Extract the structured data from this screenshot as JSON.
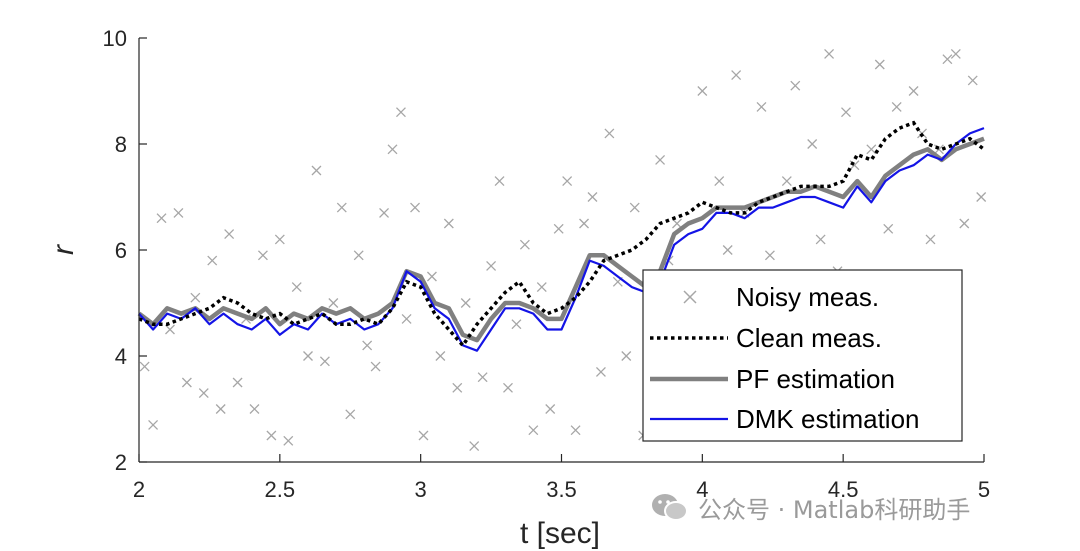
{
  "chart_data": {
    "type": "line",
    "xlabel": "t [sec]",
    "ylabel": "r",
    "xlim": [
      2,
      5
    ],
    "ylim": [
      2,
      10
    ],
    "xticks": [
      "2",
      "2.5",
      "3",
      "3.5",
      "4",
      "4.5",
      "5"
    ],
    "yticks": [
      "2",
      "4",
      "6",
      "8",
      "10"
    ],
    "legend_position": "bottom-right",
    "colors": {
      "noisy": "#a6a6a6",
      "clean": "#000000",
      "pf": "#808080",
      "dmk": "#1414e6"
    },
    "series": [
      {
        "name": "Noisy meas.",
        "style": "markers-x",
        "x": [
          2.02,
          2.05,
          2.08,
          2.11,
          2.14,
          2.17,
          2.2,
          2.23,
          2.26,
          2.29,
          2.32,
          2.35,
          2.38,
          2.41,
          2.44,
          2.47,
          2.5,
          2.53,
          2.56,
          2.6,
          2.63,
          2.66,
          2.69,
          2.72,
          2.75,
          2.78,
          2.81,
          2.84,
          2.87,
          2.9,
          2.93,
          2.95,
          2.98,
          3.01,
          3.04,
          3.07,
          3.1,
          3.13,
          3.16,
          3.19,
          3.22,
          3.25,
          3.28,
          3.31,
          3.34,
          3.37,
          3.4,
          3.43,
          3.46,
          3.49,
          3.52,
          3.55,
          3.58,
          3.61,
          3.64,
          3.67,
          3.7,
          3.73,
          3.76,
          3.79,
          3.82,
          3.85,
          3.88,
          3.91,
          3.94,
          3.97,
          4.0,
          4.03,
          4.06,
          4.09,
          4.12,
          4.15,
          4.18,
          4.21,
          4.24,
          4.27,
          4.3,
          4.33,
          4.36,
          4.39,
          4.42,
          4.45,
          4.48,
          4.51,
          4.54,
          4.57,
          4.6,
          4.63,
          4.66,
          4.69,
          4.72,
          4.75,
          4.78,
          4.81,
          4.84,
          4.87,
          4.9,
          4.93,
          4.96,
          4.99
        ],
        "y": [
          3.8,
          2.7,
          6.6,
          4.5,
          6.7,
          3.5,
          5.1,
          3.3,
          5.8,
          3.0,
          6.3,
          3.5,
          4.7,
          3.0,
          5.9,
          2.5,
          6.2,
          2.4,
          5.3,
          4.0,
          7.5,
          3.9,
          5.0,
          6.8,
          2.9,
          5.9,
          4.2,
          3.8,
          6.7,
          7.9,
          8.6,
          4.7,
          6.8,
          2.5,
          5.5,
          4.0,
          6.5,
          3.4,
          5.0,
          2.3,
          3.6,
          5.7,
          7.3,
          3.4,
          4.6,
          6.1,
          2.6,
          5.3,
          3.0,
          6.4,
          7.3,
          2.6,
          6.5,
          7.0,
          3.7,
          8.2,
          5.4,
          4.0,
          6.8,
          2.5,
          4.3,
          7.7,
          5.8,
          6.5,
          4.9,
          4.2,
          9.0,
          5.5,
          7.3,
          6.0,
          9.3,
          6.7,
          4.4,
          8.7,
          5.9,
          4.0,
          7.3,
          9.1,
          4.9,
          8.0,
          6.2,
          9.7,
          5.6,
          8.6,
          7.6,
          4.4,
          7.9,
          9.5,
          6.4,
          8.7,
          5.2,
          9.0,
          8.2,
          6.2,
          7.9,
          9.6,
          9.7,
          6.5,
          9.2,
          7.0
        ]
      },
      {
        "name": "Clean meas.",
        "style": "dotted",
        "x": [
          2.0,
          2.05,
          2.1,
          2.15,
          2.2,
          2.25,
          2.3,
          2.35,
          2.4,
          2.45,
          2.5,
          2.55,
          2.6,
          2.65,
          2.7,
          2.75,
          2.8,
          2.85,
          2.9,
          2.95,
          3.0,
          3.05,
          3.1,
          3.15,
          3.2,
          3.25,
          3.3,
          3.35,
          3.4,
          3.45,
          3.5,
          3.55,
          3.6,
          3.65,
          3.7,
          3.75,
          3.8,
          3.85,
          3.9,
          3.95,
          4.0,
          4.05,
          4.1,
          4.15,
          4.2,
          4.25,
          4.3,
          4.35,
          4.4,
          4.45,
          4.5,
          4.55,
          4.6,
          4.65,
          4.7,
          4.75,
          4.8,
          4.85,
          4.9,
          4.95,
          5.0
        ],
        "y": [
          4.7,
          4.6,
          4.6,
          4.7,
          4.8,
          4.9,
          5.1,
          5.0,
          4.8,
          4.7,
          4.8,
          4.6,
          4.7,
          4.8,
          4.6,
          4.6,
          4.7,
          4.6,
          4.9,
          5.4,
          5.3,
          4.8,
          4.5,
          4.2,
          4.6,
          4.9,
          5.2,
          5.4,
          5.0,
          4.8,
          4.9,
          5.1,
          5.4,
          5.8,
          5.9,
          6.0,
          6.2,
          6.5,
          6.6,
          6.7,
          6.9,
          6.8,
          6.7,
          6.7,
          6.9,
          7.0,
          7.1,
          7.2,
          7.2,
          7.2,
          7.3,
          7.8,
          7.7,
          8.1,
          8.3,
          8.4,
          8.0,
          7.9,
          8.0,
          8.1,
          7.9
        ]
      },
      {
        "name": "PF estimation",
        "style": "thick",
        "x": [
          2.0,
          2.05,
          2.1,
          2.15,
          2.2,
          2.25,
          2.3,
          2.35,
          2.4,
          2.45,
          2.5,
          2.55,
          2.6,
          2.65,
          2.7,
          2.75,
          2.8,
          2.85,
          2.9,
          2.95,
          3.0,
          3.05,
          3.1,
          3.15,
          3.2,
          3.25,
          3.3,
          3.35,
          3.4,
          3.45,
          3.5,
          3.55,
          3.6,
          3.65,
          3.7,
          3.75,
          3.8,
          3.85,
          3.9,
          3.95,
          4.0,
          4.05,
          4.1,
          4.15,
          4.2,
          4.25,
          4.3,
          4.35,
          4.4,
          4.45,
          4.5,
          4.55,
          4.6,
          4.65,
          4.7,
          4.75,
          4.8,
          4.85,
          4.9,
          4.95,
          5.0
        ],
        "y": [
          4.8,
          4.6,
          4.9,
          4.8,
          4.9,
          4.7,
          4.9,
          4.8,
          4.7,
          4.9,
          4.6,
          4.8,
          4.7,
          4.9,
          4.8,
          4.9,
          4.7,
          4.8,
          5.0,
          5.6,
          5.5,
          5.0,
          4.9,
          4.4,
          4.3,
          4.7,
          5.0,
          5.0,
          4.9,
          4.7,
          4.7,
          5.3,
          5.9,
          5.9,
          5.7,
          5.5,
          5.3,
          5.6,
          6.3,
          6.5,
          6.6,
          6.8,
          6.8,
          6.8,
          6.9,
          7.0,
          7.1,
          7.1,
          7.2,
          7.1,
          7.0,
          7.3,
          7.0,
          7.4,
          7.6,
          7.8,
          7.9,
          7.7,
          7.9,
          8.0,
          8.1
        ]
      },
      {
        "name": "DMK estimation",
        "style": "solid",
        "x": [
          2.0,
          2.05,
          2.1,
          2.15,
          2.2,
          2.25,
          2.3,
          2.35,
          2.4,
          2.45,
          2.5,
          2.55,
          2.6,
          2.65,
          2.7,
          2.75,
          2.8,
          2.85,
          2.9,
          2.95,
          3.0,
          3.05,
          3.1,
          3.15,
          3.2,
          3.25,
          3.3,
          3.35,
          3.4,
          3.45,
          3.5,
          3.55,
          3.6,
          3.65,
          3.7,
          3.75,
          3.8,
          3.85,
          3.9,
          3.95,
          4.0,
          4.05,
          4.1,
          4.15,
          4.2,
          4.25,
          4.3,
          4.35,
          4.4,
          4.45,
          4.5,
          4.55,
          4.6,
          4.65,
          4.7,
          4.75,
          4.8,
          4.85,
          4.9,
          4.95,
          5.0
        ],
        "y": [
          4.8,
          4.5,
          4.8,
          4.7,
          4.9,
          4.6,
          4.8,
          4.6,
          4.5,
          4.7,
          4.4,
          4.6,
          4.5,
          4.8,
          4.6,
          4.7,
          4.5,
          4.6,
          4.9,
          5.6,
          5.4,
          4.9,
          4.7,
          4.2,
          4.1,
          4.5,
          4.9,
          4.9,
          4.8,
          4.5,
          4.5,
          5.1,
          5.8,
          5.7,
          5.5,
          5.3,
          5.2,
          5.4,
          6.1,
          6.3,
          6.4,
          6.7,
          6.7,
          6.6,
          6.8,
          6.8,
          6.9,
          7.0,
          7.0,
          6.9,
          6.8,
          7.2,
          6.9,
          7.3,
          7.5,
          7.6,
          7.8,
          7.7,
          8.0,
          8.2,
          8.3
        ]
      }
    ]
  },
  "watermark": {
    "text": "公众号 · Matlab科研助手"
  }
}
